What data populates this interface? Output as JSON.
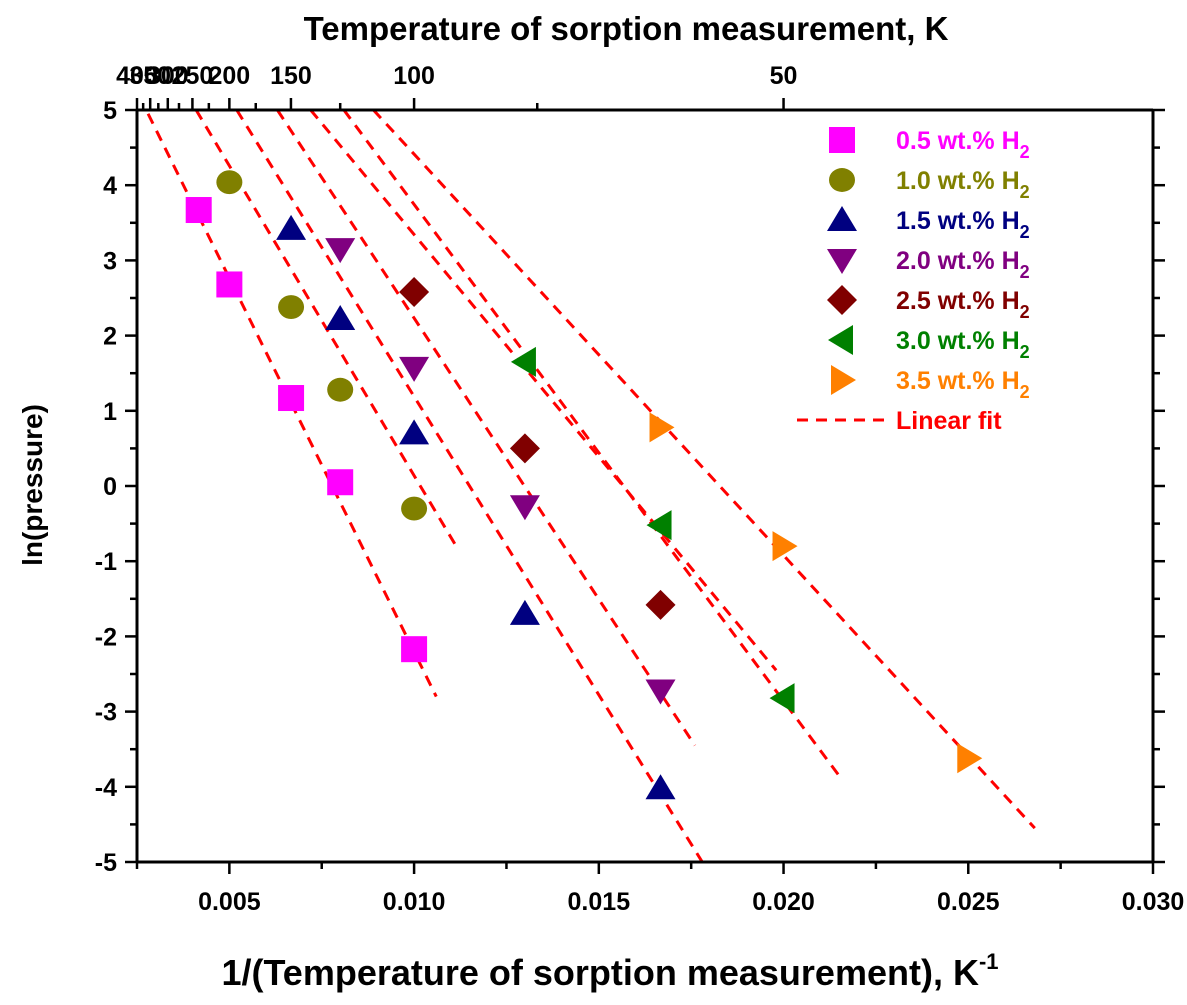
{
  "chart_data": {
    "type": "scatter",
    "title": "",
    "top_axis": {
      "label": "Temperature of sorption measurement, K",
      "tick_labels": [
        "400",
        "350",
        "300",
        "250",
        "200",
        "150",
        "100",
        "50"
      ]
    },
    "xlabel_main": "1/(Temperature of sorption measurement), K",
    "xlabel_superscript": "-1",
    "ylabel": "ln(pressure)",
    "xlim": [
      0.0025,
      0.03
    ],
    "ylim": [
      -5,
      5
    ],
    "x_tick_labels": [
      "0.005",
      "0.010",
      "0.015",
      "0.020",
      "0.025",
      "0.030"
    ],
    "y_tick_labels": [
      "5",
      "4",
      "3",
      "2",
      "1",
      "0",
      "-1",
      "-2",
      "-3",
      "-4",
      "-5"
    ],
    "grid": false,
    "legend_position": "top-right",
    "fit_label": "Linear fit",
    "fit_color": "#ff0000",
    "series": [
      {
        "name_main": "0.5 wt.% H",
        "name_sub": "2",
        "marker": "square",
        "color": "#ff00ff",
        "x": [
          0.00417,
          0.005,
          0.00667,
          0.008,
          0.01
        ],
        "y": [
          3.67,
          2.68,
          1.17,
          0.05,
          -2.17
        ],
        "fit_x": [
          0.0028,
          0.0106
        ],
        "fit_y": [
          4.95,
          -2.8
        ]
      },
      {
        "name_main": "1.0 wt.% H",
        "name_sub": "2",
        "marker": "circle",
        "color": "#808000",
        "x": [
          0.005,
          0.00667,
          0.008,
          0.01
        ],
        "y": [
          4.04,
          2.38,
          1.28,
          -0.3
        ],
        "fit_x": [
          0.0041,
          0.0112
        ],
        "fit_y": [
          5.0,
          -0.85
        ]
      },
      {
        "name_main": "1.5 wt.% H",
        "name_sub": "2",
        "marker": "triangle-up",
        "color": "#000080",
        "x": [
          0.00667,
          0.008,
          0.01,
          0.013,
          0.01667
        ],
        "y": [
          3.42,
          2.22,
          0.7,
          -1.7,
          -4.02
        ],
        "fit_x": [
          0.0052,
          0.0178
        ],
        "fit_y": [
          5.0,
          -5.0
        ]
      },
      {
        "name_main": "2.0 wt.% H",
        "name_sub": "2",
        "marker": "triangle-down",
        "color": "#800080",
        "x": [
          0.008,
          0.01,
          0.013,
          0.01667
        ],
        "y": [
          3.15,
          1.57,
          -0.27,
          -2.72
        ],
        "fit_x": [
          0.0063,
          0.0176
        ],
        "fit_y": [
          5.0,
          -3.45
        ]
      },
      {
        "name_main": "2.5 wt.% H",
        "name_sub": "2",
        "marker": "diamond",
        "color": "#800000",
        "x": [
          0.01,
          0.013,
          0.01667
        ],
        "y": [
          2.58,
          0.5,
          -1.58
        ],
        "fit_x": [
          0.0072,
          0.0198
        ],
        "fit_y": [
          5.0,
          -2.45
        ]
      },
      {
        "name_main": "3.0 wt.% H",
        "name_sub": "2",
        "marker": "triangle-left",
        "color": "#008000",
        "x": [
          0.013,
          0.01667,
          0.02
        ],
        "y": [
          1.65,
          -0.52,
          -2.82
        ],
        "fit_x": [
          0.0081,
          0.0215
        ],
        "fit_y": [
          5.0,
          -3.85
        ]
      },
      {
        "name_main": "3.5 wt.% H",
        "name_sub": "2",
        "marker": "triangle-right",
        "color": "#ff8000",
        "x": [
          0.01667,
          0.02,
          0.025
        ],
        "y": [
          0.78,
          -0.8,
          -3.62
        ],
        "fit_x": [
          0.0089,
          0.0268
        ],
        "fit_y": [
          5.0,
          -4.55
        ]
      }
    ]
  }
}
